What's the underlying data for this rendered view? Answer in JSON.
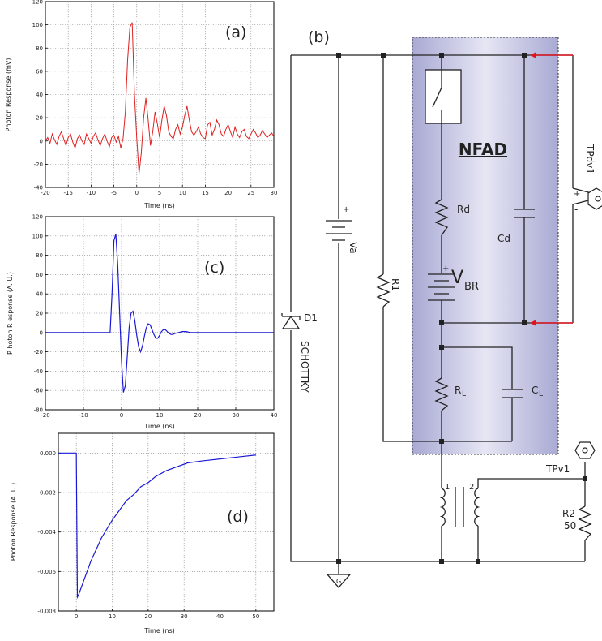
{
  "chart_data": [
    {
      "id": "a",
      "type": "line",
      "panel_label": "(a)",
      "xlabel": "Time (ns)",
      "ylabel": "Photon Response (mV)",
      "xlim": [
        -20,
        30
      ],
      "ylim": [
        -40,
        120
      ],
      "xticks": [
        -20,
        -15,
        -10,
        -5,
        0,
        5,
        10,
        15,
        20,
        25,
        30
      ],
      "yticks": [
        -40,
        -20,
        0,
        20,
        40,
        60,
        80,
        100,
        120
      ],
      "grid": true,
      "color": "#e02020",
      "series": [
        {
          "x": [
            -20,
            -19.5,
            -19,
            -18.5,
            -18,
            -17.5,
            -17,
            -16.5,
            -16,
            -15.5,
            -15,
            -14.5,
            -14,
            -13.5,
            -13,
            -12.5,
            -12,
            -11.5,
            -11,
            -10.5,
            -10,
            -9.5,
            -9,
            -8.5,
            -8,
            -7.5,
            -7,
            -6.5,
            -6,
            -5.5,
            -5,
            -4.5,
            -4,
            -3.5,
            -3,
            -2.5,
            -2,
            -1.5,
            -1,
            -0.5,
            0,
            0.5,
            1,
            1.5,
            2,
            2.5,
            3,
            3.5,
            4,
            4.5,
            5,
            5.5,
            6,
            6.5,
            7,
            7.5,
            8,
            8.5,
            9,
            9.5,
            10,
            10.5,
            11,
            11.5,
            12,
            12.5,
            13,
            13.5,
            14,
            14.5,
            15,
            15.5,
            16,
            16.5,
            17,
            17.5,
            18,
            18.5,
            19,
            19.5,
            20,
            20.5,
            21,
            21.5,
            22,
            22.5,
            23,
            23.5,
            24,
            24.5,
            25,
            25.5,
            26,
            26.5,
            27,
            27.5,
            28,
            28.5,
            29,
            29.5,
            30
          ],
          "y": [
            0,
            3,
            -2,
            6,
            1,
            -3,
            4,
            8,
            2,
            -4,
            3,
            6,
            -1,
            -6,
            2,
            5,
            0,
            -3,
            6,
            2,
            -2,
            4,
            7,
            1,
            -4,
            2,
            6,
            0,
            -5,
            3,
            5,
            -1,
            4,
            -6,
            2,
            25,
            70,
            98,
            102,
            40,
            2,
            -28,
            -10,
            20,
            37,
            18,
            -4,
            8,
            25,
            15,
            3,
            18,
            30,
            22,
            8,
            4,
            2,
            10,
            14,
            6,
            12,
            22,
            30,
            18,
            8,
            5,
            8,
            12,
            6,
            3,
            2,
            14,
            16,
            5,
            10,
            18,
            14,
            6,
            4,
            10,
            14,
            8,
            3,
            12,
            6,
            3,
            8,
            10,
            4,
            2,
            6,
            10,
            7,
            3,
            5,
            9,
            6,
            3,
            5,
            7,
            4
          ]
        }
      ]
    },
    {
      "id": "c",
      "type": "line",
      "panel_label": "(c)",
      "xlabel": "Time (ns)",
      "ylabel": "P hoton R esponse (A. U.)",
      "xlim": [
        -20,
        40
      ],
      "ylim": [
        -80,
        120
      ],
      "xticks": [
        -20,
        -10,
        0,
        10,
        20,
        30,
        40
      ],
      "yticks": [
        -80,
        -60,
        -40,
        -20,
        0,
        20,
        40,
        60,
        80,
        100,
        120
      ],
      "grid": true,
      "color": "#1a1ad6",
      "series": [
        {
          "x": [
            -20,
            -3,
            -2.5,
            -2,
            -1.5,
            -1,
            -0.5,
            0,
            0.5,
            1,
            1.5,
            2,
            2.5,
            3,
            3.5,
            4,
            4.5,
            5,
            5.5,
            6,
            6.5,
            7,
            7.5,
            8,
            8.5,
            9,
            9.5,
            10,
            10.5,
            11,
            11.5,
            12,
            12.5,
            13,
            13.5,
            14,
            15,
            16,
            17,
            18,
            19,
            20,
            22,
            25,
            30,
            35,
            40
          ],
          "y": [
            0,
            0,
            40,
            95,
            102,
            70,
            20,
            -30,
            -62,
            -55,
            -25,
            5,
            20,
            22,
            12,
            -3,
            -15,
            -20,
            -14,
            -4,
            5,
            9,
            8,
            3,
            -2,
            -6,
            -6,
            -3,
            1,
            3,
            3,
            1,
            -1,
            -2,
            -2,
            -1,
            0,
            1,
            1,
            0,
            0,
            0,
            0,
            0,
            0,
            0,
            0
          ]
        }
      ]
    },
    {
      "id": "d",
      "type": "line",
      "panel_label": "(d)",
      "xlabel": "Time (ns)",
      "ylabel": "Photon Response (A. U.)",
      "xlim": [
        -5,
        55
      ],
      "ylim": [
        -0.008,
        0.001
      ],
      "xticks": [
        0,
        10,
        20,
        30,
        40,
        50
      ],
      "xtick_labels": [
        "0",
        "10",
        "20",
        "30",
        "40",
        "50"
      ],
      "yticks": [
        -0.008,
        -0.006,
        -0.004,
        -0.002,
        0
      ],
      "ytick_labels": [
        "-0.008",
        "-0.006",
        "-0.004",
        "-0.002",
        "0.000"
      ],
      "grid": true,
      "color": "#1a1ad6",
      "series": [
        {
          "x": [
            -5,
            0,
            0.3,
            0.6,
            1,
            2,
            3,
            4,
            5,
            6,
            7,
            8,
            9,
            10,
            12,
            14,
            16,
            18,
            20,
            22,
            25,
            28,
            31,
            35,
            40,
            45,
            50
          ],
          "y": [
            0,
            0,
            -0.0073,
            -0.0072,
            -0.007,
            -0.0065,
            -0.006,
            -0.0055,
            -0.0051,
            -0.0047,
            -0.0043,
            -0.004,
            -0.0037,
            -0.0034,
            -0.0029,
            -0.0024,
            -0.0021,
            -0.0017,
            -0.0015,
            -0.0012,
            -0.0009,
            -0.0007,
            -0.0005,
            -0.0004,
            -0.0003,
            -0.0002,
            -0.0001
          ]
        }
      ]
    }
  ],
  "circuit": {
    "panel_label": "(b)",
    "nfad_label": "NFAD",
    "labels": {
      "rd": "Rd",
      "cd": "Cd",
      "vbr": "V",
      "vbr_sub": "BR",
      "vbr_plus": "+",
      "va": "Va",
      "va_plus": "+",
      "r1": "R1",
      "d1": "D1",
      "schottky": "SCHOTTKY",
      "rl": "R",
      "rl_sub": "L",
      "cl": "C",
      "cl_sub": "L",
      "tpdv1": "TPdv1",
      "tp_plus": "+",
      "tp_minus": "-",
      "tpv1": "TPv1",
      "r2": "R2",
      "r2_value": "50",
      "t1": "1",
      "t2": "2",
      "ground": "G"
    },
    "colors": {
      "nfad_fill": "#b8b8dc",
      "arrow": "#e0141e"
    }
  }
}
